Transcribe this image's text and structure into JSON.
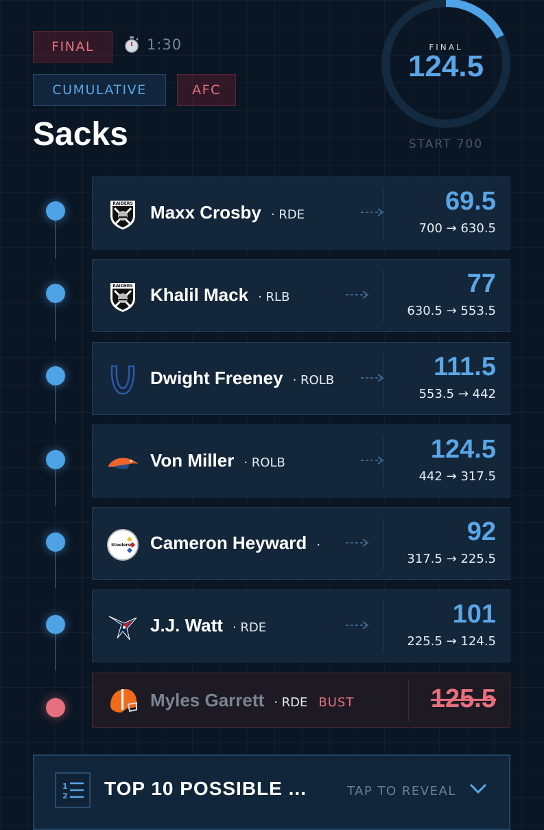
{
  "status": {
    "final_label": "FINAL",
    "timer": "1:30",
    "mode_label": "CUMULATIVE",
    "conference_label": "AFC"
  },
  "title": "Sacks",
  "score": {
    "label": "FINAL",
    "value": "124.5",
    "start_label": "START 700",
    "start_value": 700,
    "final_value": 124.5
  },
  "players": [
    {
      "name": "Maxx Crosby",
      "position": "RDE",
      "team": "Raiders",
      "value": "69.5",
      "range": "700 → 630.5",
      "bust": false
    },
    {
      "name": "Khalil Mack",
      "position": "RLB",
      "team": "Raiders",
      "value": "77",
      "range": "630.5 → 553.5",
      "bust": false
    },
    {
      "name": "Dwight Freeney",
      "position": "ROLB",
      "team": "Colts",
      "value": "111.5",
      "range": "553.5 → 442",
      "bust": false
    },
    {
      "name": "Von Miller",
      "position": "ROLB",
      "team": "Broncos",
      "value": "124.5",
      "range": "442 → 317.5",
      "bust": false
    },
    {
      "name": "Cameron Heyward",
      "position": "",
      "team": "Steelers",
      "value": "92",
      "range": "317.5 → 225.5",
      "bust": false
    },
    {
      "name": "J.J. Watt",
      "position": "RDE",
      "team": "Texans",
      "value": "101",
      "range": "225.5 → 124.5",
      "bust": false
    },
    {
      "name": "Myles Garrett",
      "position": "RDE",
      "team": "Browns",
      "value": "125.5",
      "range": "",
      "bust": true,
      "bust_label": "BUST"
    }
  ],
  "logos": {
    "raiders_text": "RAIDERS",
    "steelers_text": "Steelers"
  },
  "footer": {
    "title": "TOP 10 POSSIBLE ...",
    "action": "TAP TO REVEAL"
  },
  "colors": {
    "accent": "#5aa6e6",
    "danger": "#e8707e",
    "background": "#0b1624",
    "card": "#13263a"
  },
  "icons": [
    "stopwatch-icon",
    "arrow-dashed-icon",
    "list-icon",
    "chevron-down-icon"
  ]
}
